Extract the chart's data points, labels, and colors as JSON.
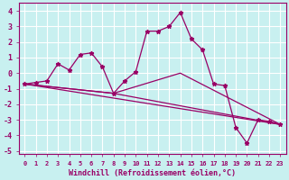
{
  "xlabel": "Windchill (Refroidissement éolien,°C)",
  "bg_color": "#c8f0f0",
  "line_color": "#990066",
  "grid_color": "#aadddd",
  "xlim": [
    -0.5,
    23.5
  ],
  "ylim": [
    -5.2,
    4.5
  ],
  "xticks": [
    0,
    1,
    2,
    3,
    4,
    5,
    6,
    7,
    8,
    9,
    10,
    11,
    12,
    13,
    14,
    15,
    16,
    17,
    18,
    19,
    20,
    21,
    22,
    23
  ],
  "yticks": [
    -5,
    -4,
    -3,
    -2,
    -1,
    0,
    1,
    2,
    3,
    4
  ],
  "main_x": [
    0,
    1,
    2,
    3,
    4,
    5,
    6,
    7,
    8,
    9,
    10,
    11,
    12,
    13,
    14,
    15,
    16,
    17,
    18,
    19,
    20,
    21,
    22,
    23
  ],
  "main_y": [
    -0.7,
    -0.6,
    -0.5,
    0.6,
    0.2,
    1.2,
    1.3,
    0.4,
    -1.3,
    -0.5,
    0.1,
    2.7,
    2.7,
    3.0,
    3.9,
    2.2,
    1.5,
    -0.7,
    -0.8,
    -3.5,
    -4.5,
    -3.0,
    -3.1,
    -3.3
  ],
  "line2_x": [
    0,
    23
  ],
  "line2_y": [
    -0.7,
    -3.3
  ],
  "line3_x": [
    0,
    8,
    23
  ],
  "line3_y": [
    -0.7,
    -1.3,
    -3.3
  ],
  "line4_x": [
    0,
    8,
    14,
    23
  ],
  "line4_y": [
    -0.7,
    -1.3,
    0.0,
    -3.3
  ],
  "marker": "*",
  "markersize": 3.5,
  "linewidth": 0.9
}
